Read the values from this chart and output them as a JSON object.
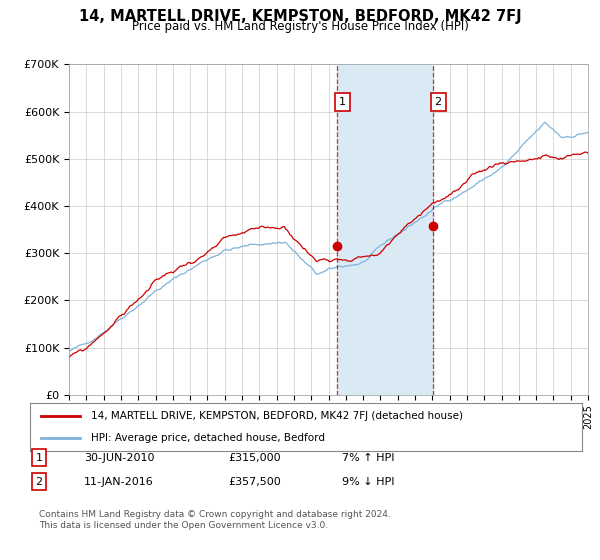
{
  "title": "14, MARTELL DRIVE, KEMPSTON, BEDFORD, MK42 7FJ",
  "subtitle": "Price paid vs. HM Land Registry's House Price Index (HPI)",
  "legend_line1": "14, MARTELL DRIVE, KEMPSTON, BEDFORD, MK42 7FJ (detached house)",
  "legend_line2": "HPI: Average price, detached house, Bedford",
  "annotation1_label": "1",
  "annotation1_date": "30-JUN-2010",
  "annotation1_price": "£315,000",
  "annotation1_hpi": "7% ↑ HPI",
  "annotation2_label": "2",
  "annotation2_date": "11-JAN-2016",
  "annotation2_price": "£357,500",
  "annotation2_hpi": "9% ↓ HPI",
  "footer": "Contains HM Land Registry data © Crown copyright and database right 2024.\nThis data is licensed under the Open Government Licence v3.0.",
  "hpi_color": "#7fb3d9",
  "price_color": "#cc0000",
  "bg_color": "#ffffff",
  "plot_bg_color": "#ffffff",
  "shade_color": "#daeaf5",
  "grid_color": "#cccccc",
  "ylim": [
    0,
    700000
  ],
  "year_start": 1995,
  "year_end": 2025,
  "sale1_year": 2010.5,
  "sale2_year": 2016.04,
  "sale1_price": 315000,
  "sale2_price": 357500
}
